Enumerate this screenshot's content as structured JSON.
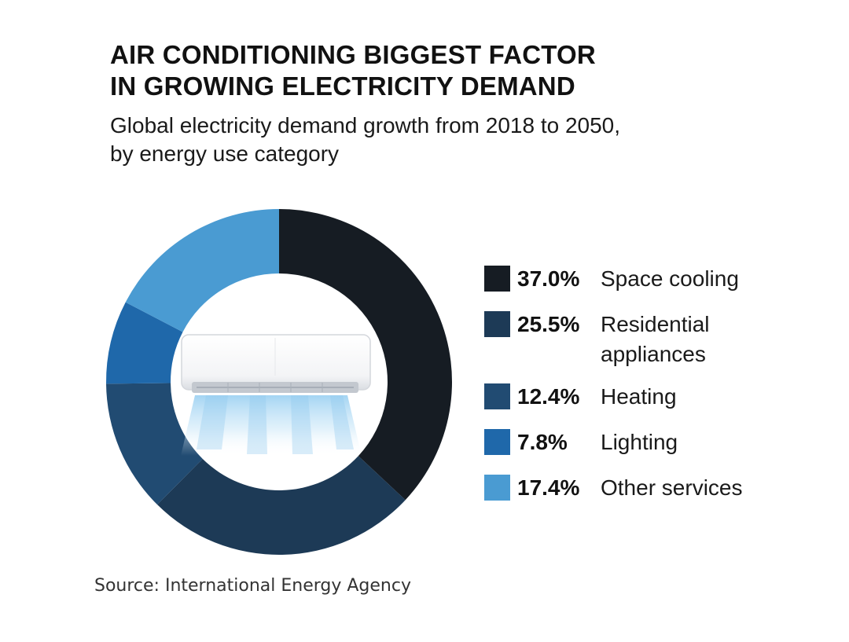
{
  "title": "AIR CONDITIONING BIGGEST FACTOR IN GROWING ELECTRICITY DEMAND",
  "title_line1": "AIR CONDITIONING BIGGEST FACTOR",
  "title_line2": "IN GROWING ELECTRICITY DEMAND",
  "subtitle_line1": "Global electricity demand growth from 2018 to 2050,",
  "subtitle_line2": "by energy use category",
  "source": "Source: International Energy Agency",
  "illustration_icon": "air-conditioner-icon",
  "chart_data": {
    "type": "pie",
    "style": "donut",
    "title": "AIR CONDITIONING BIGGEST FACTOR IN GROWING ELECTRICITY DEMAND",
    "subtitle": "Global electricity demand growth from 2018 to 2050, by energy use category",
    "categories": [
      "Space cooling",
      "Residential appliances",
      "Heating",
      "Lighting",
      "Other services"
    ],
    "values": [
      37.0,
      25.5,
      12.4,
      7.8,
      17.4
    ],
    "value_labels": [
      "37.0%",
      "25.5%",
      "12.4%",
      "7.8%",
      "17.4%"
    ],
    "label_lines": [
      [
        "Space cooling"
      ],
      [
        "Residential",
        "appliances"
      ],
      [
        "Heating"
      ],
      [
        "Lighting"
      ],
      [
        "Other services"
      ]
    ],
    "colors": [
      "#161c23",
      "#1d3a56",
      "#214b72",
      "#1f68aa",
      "#4a9bd2"
    ],
    "start": "12 o'clock",
    "direction": "clockwise",
    "legend_position": "right"
  }
}
